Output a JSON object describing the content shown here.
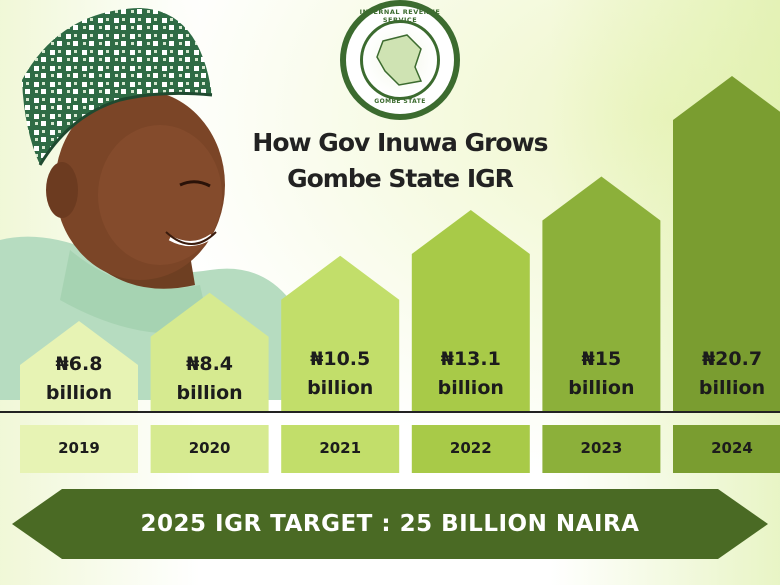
{
  "title": {
    "line1": "How Gov Inuwa Grows",
    "line2": "Gombe State IGR"
  },
  "seal": {
    "top_text": "INTERNAL REVENUE SERVICE",
    "bottom_text": "GOMBE STATE"
  },
  "chart_data": {
    "type": "bar",
    "categories": [
      "2019",
      "2020",
      "2021",
      "2022",
      "2023",
      "2024"
    ],
    "values": [
      6.8,
      8.4,
      10.5,
      13.1,
      15,
      20.7
    ],
    "value_labels": [
      "₦6.8",
      "₦8.4",
      "₦10.5",
      "₦13.1",
      "₦15",
      "₦20.7"
    ],
    "unit_label": "billion",
    "title": "How Gov Inuwa Grows Gombe State IGR",
    "xlabel": "",
    "ylabel": "",
    "bar_colors": [
      "#e7f3b4",
      "#d6ea90",
      "#c2de6a",
      "#a8ca48",
      "#8cb03a",
      "#7a9d30"
    ],
    "year_box_colors": [
      "#e7f3b4",
      "#d6ea90",
      "#c2de6a",
      "#a8ca48",
      "#8cb03a",
      "#7a9d30"
    ]
  },
  "target_banner": {
    "text": "2025 IGR TARGET : 25 BILLION NAIRA",
    "color": "#4a6a24"
  },
  "colors": {
    "dark_green": "#3c6b2f",
    "text_dark": "#1c1c1c"
  }
}
